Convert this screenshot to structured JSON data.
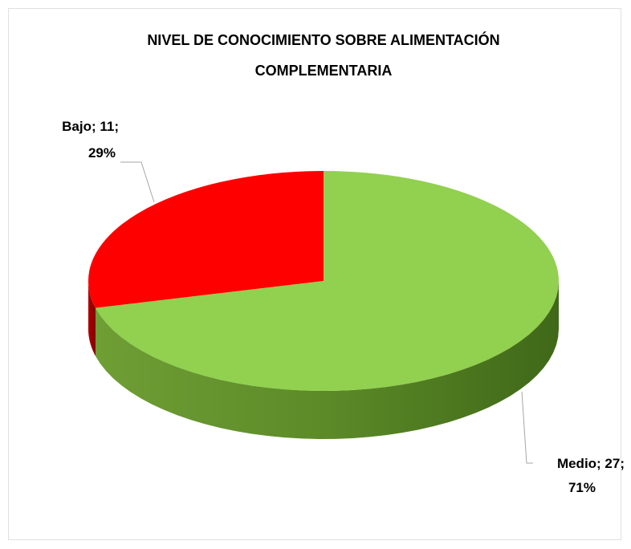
{
  "chart_data": {
    "type": "pie",
    "title": [
      "NIVEL DE CONOCIMIENTO SOBRE ALIMENTACIÓN",
      "COMPLEMENTARIA"
    ],
    "categories": [
      "Medio",
      "Bajo"
    ],
    "values": [
      27,
      11
    ],
    "value_labels": [
      [
        "Medio; 27;",
        "71%"
      ],
      [
        "Bajo; 11;",
        "29%"
      ]
    ],
    "colors": [
      "#92d050",
      "#ff0000"
    ],
    "three_d": true
  }
}
